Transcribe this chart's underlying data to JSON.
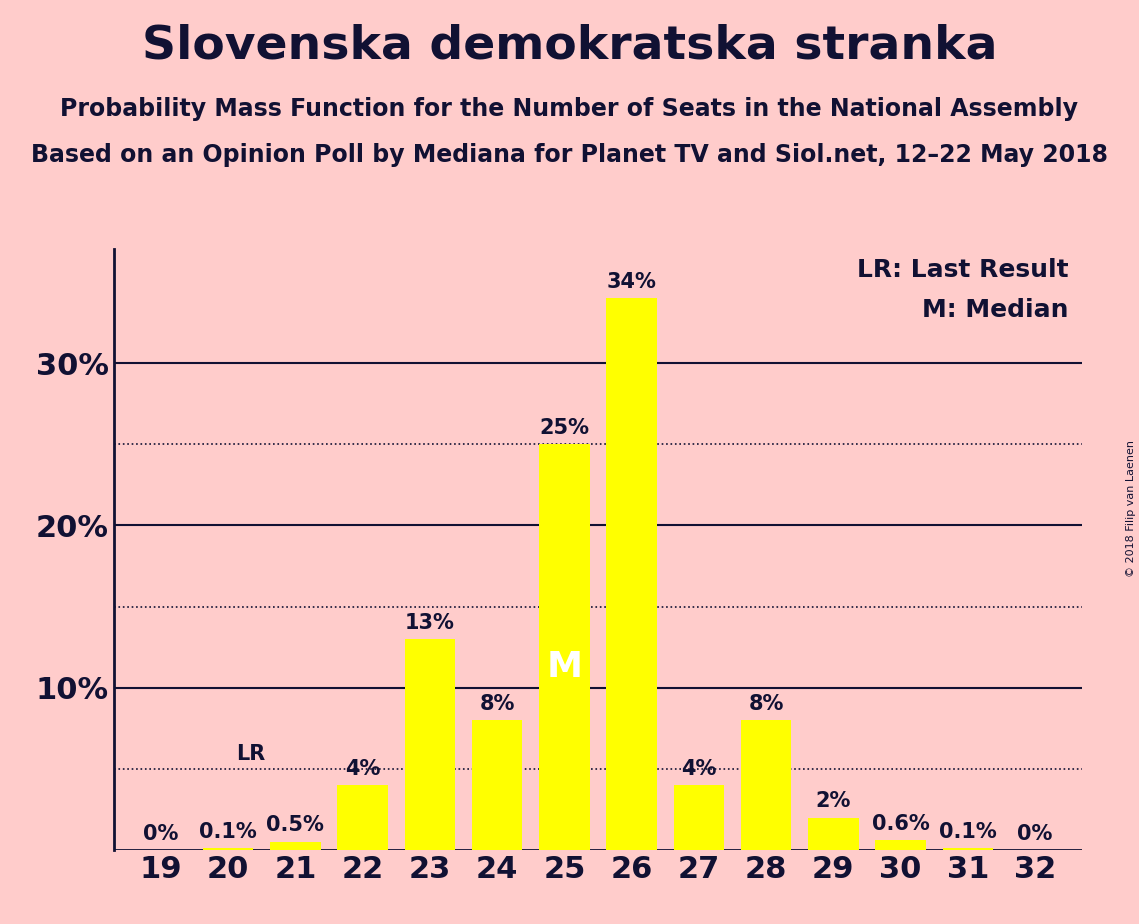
{
  "title": "Slovenska demokratska stranka",
  "subtitle1": "Probability Mass Function for the Number of Seats in the National Assembly",
  "subtitle2": "Based on an Opinion Poll by Mediana for Planet TV and Siol.net, 12–22 May 2018",
  "copyright": "© 2018 Filip van Laenen",
  "seats": [
    19,
    20,
    21,
    22,
    23,
    24,
    25,
    26,
    27,
    28,
    29,
    30,
    31,
    32
  ],
  "probabilities": [
    0.0,
    0.1,
    0.5,
    4.0,
    13.0,
    8.0,
    25.0,
    34.0,
    4.0,
    8.0,
    2.0,
    0.6,
    0.1,
    0.0
  ],
  "labels": [
    "0%",
    "0.1%",
    "0.5%",
    "4%",
    "13%",
    "8%",
    "25%",
    "34%",
    "4%",
    "8%",
    "2%",
    "0.6%",
    "0.1%",
    "0%"
  ],
  "bar_color": "#FFFF00",
  "background_color": "#FFCCCB",
  "text_color": "#111133",
  "median_seat": 25,
  "last_result_seat": 21,
  "ylim": [
    0,
    37
  ],
  "yticks": [
    0,
    10,
    20,
    30
  ],
  "ytick_labels": [
    "",
    "10%",
    "20%",
    "30%"
  ],
  "dotted_yticks": [
    5,
    15,
    25
  ],
  "solid_yticks": [
    10,
    20,
    30
  ],
  "legend_text1": "LR: Last Result",
  "legend_text2": "M: Median",
  "title_fontsize": 34,
  "subtitle_fontsize": 17,
  "label_fontsize": 15,
  "tick_fontsize": 22,
  "legend_fontsize": 18,
  "bar_width": 0.75
}
